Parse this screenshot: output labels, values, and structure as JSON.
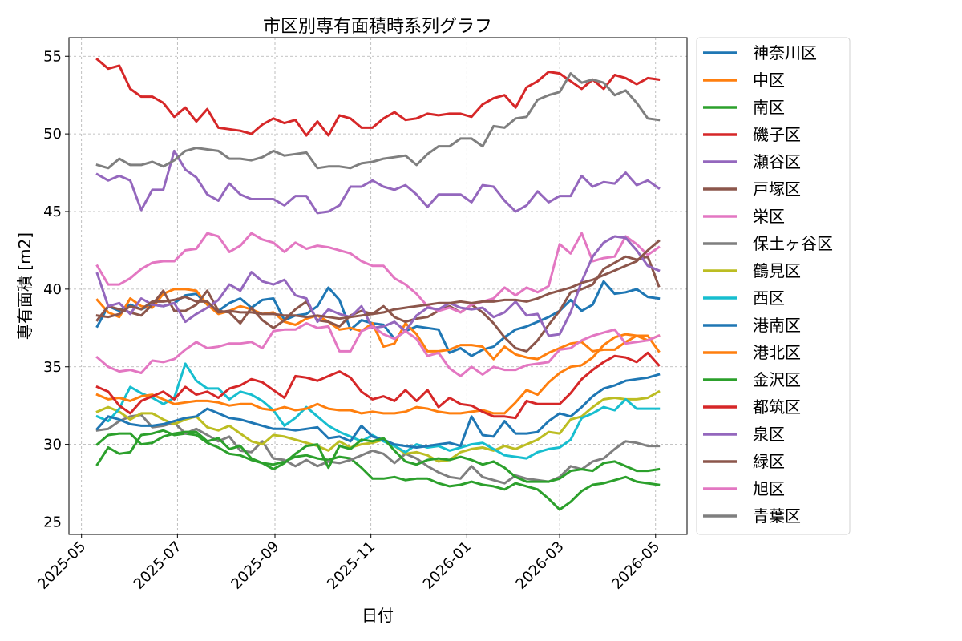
{
  "chart_data": {
    "type": "line",
    "title": "市区別専有面積時系列グラフ",
    "xlabel": "日付",
    "ylabel": "専有面積 [m2]",
    "ylim": [
      24.2,
      56.2
    ],
    "yticks": [
      25,
      30,
      35,
      40,
      45,
      50,
      55
    ],
    "xlim": [
      "2025-04-23",
      "2026-05-21"
    ],
    "xticks": [
      "2025-05",
      "2025-07",
      "2025-09",
      "2025-11",
      "2026-01",
      "2026-03",
      "2026-05"
    ],
    "grid": true,
    "legend": "outside-right",
    "x": [
      "2025-05-11",
      "2025-05-18",
      "2025-05-25",
      "2025-06-01",
      "2025-06-08",
      "2025-06-15",
      "2025-06-22",
      "2025-06-29",
      "2025-07-06",
      "2025-07-13",
      "2025-07-20",
      "2025-07-27",
      "2025-08-03",
      "2025-08-10",
      "2025-08-17",
      "2025-08-24",
      "2025-08-31",
      "2025-09-07",
      "2025-09-14",
      "2025-09-21",
      "2025-09-28",
      "2025-10-05",
      "2025-10-12",
      "2025-10-19",
      "2025-10-26",
      "2025-11-02",
      "2025-11-09",
      "2025-11-16",
      "2025-11-23",
      "2025-11-30",
      "2025-12-07",
      "2025-12-14",
      "2025-12-21",
      "2025-12-28",
      "2026-01-04",
      "2026-01-11",
      "2026-01-18",
      "2026-01-25",
      "2026-02-01",
      "2026-02-08",
      "2026-02-15",
      "2026-02-22",
      "2026-03-01",
      "2026-03-08",
      "2026-03-15",
      "2026-03-22",
      "2026-03-29",
      "2026-04-05",
      "2026-04-12",
      "2026-04-19",
      "2026-04-26",
      "2026-05-03"
    ],
    "series": [
      {
        "name": "神奈川区",
        "color": "#1f77b4",
        "values": [
          37.6,
          38.9,
          38.6,
          39.0,
          38.7,
          39.0,
          38.9,
          39.1,
          39.6,
          39.7,
          39.0,
          38.6,
          39.1,
          39.4,
          38.8,
          39.3,
          39.4,
          38.0,
          38.3,
          38.4,
          38.9,
          40.1,
          39.3,
          37.4,
          38.0,
          37.8,
          37.7,
          36.8,
          37.3,
          37.6,
          37.5,
          37.4,
          35.9,
          36.2,
          35.7,
          36.1,
          36.3,
          36.9,
          37.4,
          37.6,
          37.9,
          38.2,
          38.6,
          39.3,
          38.6,
          39.0,
          40.5,
          39.7,
          39.8,
          40.0,
          39.5,
          39.4
        ]
      },
      {
        "name": "中区",
        "color": "#ff7f0e",
        "values": [
          39.3,
          38.5,
          38.2,
          39.4,
          38.9,
          38.8,
          39.7,
          40.0,
          40.0,
          39.9,
          39.0,
          38.4,
          38.6,
          38.9,
          38.7,
          38.4,
          38.5,
          37.9,
          37.7,
          38.1,
          38.3,
          37.9,
          37.4,
          37.5,
          37.3,
          37.8,
          36.3,
          36.5,
          37.8,
          37.1,
          36.0,
          36.0,
          36.1,
          36.4,
          36.4,
          36.3,
          35.5,
          36.3,
          35.8,
          35.6,
          35.5,
          35.9,
          36.2,
          36.5,
          36.6,
          36.0,
          36.1,
          36.1,
          36.6,
          37.0,
          36.7,
          37.0
        ]
      },
      {
        "name": "南区",
        "color": "#2ca02c",
        "values": [
          28.7,
          29.8,
          29.4,
          29.5,
          30.6,
          30.7,
          30.9,
          30.6,
          30.7,
          30.6,
          30.1,
          29.8,
          29.4,
          29.3,
          29.0,
          28.8,
          28.7,
          28.9,
          29.2,
          29.3,
          29.1,
          29.0,
          29.2,
          29.1,
          28.5,
          27.8,
          27.8,
          27.9,
          27.7,
          27.8,
          27.8,
          27.5,
          27.3,
          27.4,
          27.6,
          27.4,
          27.3,
          27.1,
          27.5,
          27.3,
          27.1,
          26.5,
          25.8,
          26.3,
          27.0,
          27.4,
          27.5,
          27.7,
          27.9,
          27.6,
          27.5,
          27.4
        ]
      },
      {
        "name": "磯子区",
        "color": "#d62728",
        "values": [
          54.8,
          54.2,
          54.4,
          52.9,
          52.4,
          52.4,
          52.0,
          51.1,
          51.7,
          50.8,
          51.6,
          50.4,
          50.3,
          50.2,
          50.0,
          50.6,
          51.0,
          50.7,
          50.9,
          49.9,
          50.8,
          49.9,
          51.2,
          51.0,
          50.4,
          50.4,
          51.0,
          51.4,
          50.9,
          51.0,
          51.3,
          51.2,
          51.3,
          51.3,
          51.1,
          51.9,
          52.3,
          52.5,
          51.7,
          53.0,
          53.4,
          54.0,
          53.9,
          53.4,
          52.9,
          53.5,
          52.9,
          53.8,
          53.6,
          53.2,
          53.6,
          53.5
        ]
      },
      {
        "name": "瀬谷区",
        "color": "#9467bd",
        "values": [
          47.4,
          47.0,
          47.3,
          47.0,
          45.1,
          46.4,
          46.4,
          48.9,
          47.7,
          47.2,
          46.1,
          45.7,
          46.8,
          46.1,
          45.8,
          45.8,
          45.8,
          45.4,
          46.0,
          46.0,
          44.9,
          45.0,
          45.4,
          46.6,
          46.6,
          47.0,
          46.6,
          46.4,
          46.7,
          46.1,
          45.3,
          46.1,
          46.1,
          46.1,
          45.6,
          46.7,
          46.6,
          45.7,
          45.0,
          45.4,
          46.3,
          45.6,
          46.0,
          46.0,
          47.3,
          46.6,
          46.9,
          46.8,
          47.5,
          46.7,
          47.0,
          46.5
        ]
      },
      {
        "name": "戸塚区",
        "color": "#8c564b",
        "values": [
          38.0,
          38.9,
          38.7,
          38.5,
          38.3,
          39.0,
          39.9,
          38.6,
          38.6,
          39.0,
          39.9,
          38.6,
          38.5,
          37.8,
          38.8,
          38.0,
          37.5,
          38.0,
          38.7,
          39.2,
          38.0,
          37.9,
          37.6,
          38.3,
          38.6,
          38.4,
          38.9,
          38.2,
          37.9,
          38.1,
          38.2,
          38.6,
          38.9,
          38.5,
          39.0,
          38.5,
          37.8,
          36.9,
          36.2,
          36.0,
          36.7,
          37.7,
          38.6,
          39.8,
          40.0,
          40.3,
          41.3,
          41.7,
          42.1,
          41.9,
          42.1,
          40.2
        ]
      },
      {
        "name": "栄区",
        "color": "#e377c2",
        "values": [
          41.5,
          40.3,
          40.3,
          40.7,
          41.3,
          41.7,
          41.8,
          41.8,
          42.5,
          42.6,
          43.6,
          43.4,
          42.4,
          42.8,
          43.6,
          43.2,
          43.0,
          42.4,
          43.0,
          42.6,
          42.8,
          42.7,
          42.5,
          42.3,
          41.8,
          41.5,
          41.5,
          40.7,
          40.3,
          39.7,
          38.9,
          38.6,
          38.8,
          38.5,
          39.0,
          39.2,
          39.4,
          40.1,
          39.6,
          40.1,
          39.8,
          40.2,
          42.9,
          42.3,
          43.6,
          41.8,
          42.0,
          42.1,
          43.4,
          42.9,
          42.2,
          42.7
        ]
      },
      {
        "name": "保土ヶ谷区",
        "color": "#7f7f7f",
        "values": [
          30.9,
          31.0,
          31.5,
          31.8,
          31.9,
          31.1,
          31.2,
          31.4,
          30.7,
          31.0,
          30.6,
          30.2,
          30.5,
          29.6,
          29.5,
          30.2,
          29.1,
          29.0,
          28.6,
          29.0,
          28.6,
          28.9,
          28.8,
          29.0,
          29.3,
          29.6,
          29.4,
          28.8,
          29.4,
          29.1,
          28.6,
          28.2,
          27.9,
          27.8,
          28.6,
          27.9,
          27.7,
          27.5,
          28.0,
          27.8,
          27.7,
          27.6,
          27.9,
          28.6,
          28.4,
          28.9,
          29.1,
          29.7,
          30.2,
          30.1,
          29.9,
          29.9
        ]
      },
      {
        "name": "鶴見区",
        "color": "#bcbd22",
        "values": [
          32.1,
          32.4,
          32.1,
          31.6,
          32.0,
          32.0,
          31.6,
          31.3,
          31.6,
          31.8,
          31.1,
          30.9,
          31.2,
          30.7,
          30.2,
          30.0,
          30.6,
          30.5,
          30.3,
          30.1,
          29.9,
          29.6,
          30.2,
          29.8,
          30.0,
          30.1,
          30.3,
          29.9,
          29.4,
          29.5,
          29.3,
          28.9,
          29.0,
          29.5,
          29.7,
          29.8,
          29.6,
          29.9,
          29.7,
          30.0,
          30.3,
          30.8,
          30.7,
          31.6,
          31.8,
          32.4,
          32.9,
          33.0,
          32.9,
          32.9,
          33.0,
          33.4
        ]
      },
      {
        "name": "西区",
        "color": "#17becf",
        "values": [
          31.8,
          31.5,
          32.3,
          33.7,
          33.3,
          33.0,
          32.6,
          33.0,
          35.2,
          34.1,
          33.6,
          33.6,
          32.9,
          33.4,
          33.2,
          32.8,
          32.2,
          31.2,
          31.7,
          32.4,
          31.8,
          31.2,
          30.8,
          30.5,
          30.2,
          30.6,
          30.2,
          29.9,
          29.5,
          30.0,
          29.8,
          29.9,
          29.6,
          29.8,
          30.0,
          30.1,
          29.7,
          29.3,
          29.2,
          29.1,
          29.5,
          29.7,
          29.8,
          30.3,
          31.7,
          32.0,
          32.4,
          32.2,
          32.9,
          32.3,
          32.3,
          32.3
        ]
      },
      {
        "name": "港南区",
        "color": "#1f77b4",
        "values": [
          31.0,
          31.8,
          31.6,
          31.3,
          31.2,
          31.2,
          31.3,
          31.5,
          31.7,
          31.8,
          32.3,
          32.0,
          31.7,
          31.6,
          31.4,
          31.2,
          31.0,
          31.0,
          30.9,
          31.0,
          31.1,
          30.4,
          30.5,
          30.2,
          31.2,
          30.5,
          30.3,
          30.0,
          29.9,
          29.8,
          29.9,
          30.0,
          30.1,
          29.9,
          31.8,
          30.6,
          30.5,
          31.5,
          30.7,
          30.7,
          30.8,
          31.5,
          32.0,
          31.8,
          32.4,
          33.1,
          33.6,
          33.8,
          34.1,
          34.2,
          34.3,
          34.5
        ]
      },
      {
        "name": "港北区",
        "color": "#ff7f0e",
        "values": [
          33.2,
          32.9,
          33.0,
          32.8,
          33.1,
          33.2,
          32.9,
          32.6,
          32.7,
          32.8,
          32.8,
          32.7,
          32.5,
          32.6,
          32.6,
          32.3,
          32.2,
          32.4,
          32.2,
          32.3,
          32.6,
          32.3,
          32.2,
          32.2,
          32.0,
          32.1,
          32.0,
          32.0,
          32.1,
          32.4,
          32.3,
          32.1,
          32.0,
          32.0,
          32.1,
          32.2,
          32.0,
          32.0,
          32.7,
          33.5,
          33.2,
          34.0,
          34.6,
          35.0,
          35.1,
          35.6,
          36.4,
          36.9,
          37.1,
          37.0,
          37.0,
          36.0
        ]
      },
      {
        "name": "金沢区",
        "color": "#2ca02c",
        "values": [
          30.0,
          30.6,
          30.7,
          30.7,
          30.0,
          30.1,
          30.5,
          30.7,
          30.8,
          30.8,
          30.2,
          30.4,
          29.7,
          29.9,
          29.1,
          28.8,
          28.4,
          28.8,
          29.4,
          29.9,
          30.0,
          28.5,
          29.9,
          29.7,
          30.3,
          30.2,
          30.4,
          29.6,
          28.9,
          28.7,
          29.0,
          29.1,
          29.0,
          29.2,
          29.0,
          28.7,
          28.9,
          28.5,
          27.9,
          27.6,
          27.6,
          27.6,
          27.8,
          28.3,
          28.4,
          28.3,
          28.8,
          28.9,
          28.6,
          28.3,
          28.3,
          28.4
        ]
      },
      {
        "name": "都筑区",
        "color": "#d62728",
        "values": [
          33.7,
          33.4,
          32.5,
          32.0,
          32.8,
          33.1,
          33.4,
          32.9,
          33.7,
          33.2,
          33.4,
          33.0,
          33.6,
          33.8,
          34.2,
          34.0,
          33.5,
          33.0,
          34.4,
          34.3,
          34.1,
          34.4,
          34.7,
          34.3,
          33.4,
          32.9,
          33.1,
          32.8,
          33.5,
          32.8,
          33.5,
          32.4,
          33.0,
          32.6,
          32.5,
          32.1,
          31.8,
          31.8,
          31.7,
          32.8,
          32.6,
          32.6,
          32.6,
          33.3,
          34.2,
          34.8,
          35.3,
          35.7,
          35.6,
          35.3,
          35.9,
          35.1
        ]
      },
      {
        "name": "泉区",
        "color": "#9467bd",
        "values": [
          41.0,
          38.9,
          39.1,
          38.4,
          39.4,
          39.0,
          38.9,
          39.1,
          37.9,
          38.4,
          38.8,
          39.3,
          40.3,
          39.9,
          41.1,
          40.5,
          40.3,
          40.6,
          39.6,
          39.4,
          37.9,
          38.7,
          38.4,
          38.2,
          38.9,
          37.5,
          37.6,
          37.9,
          37.3,
          38.3,
          38.8,
          38.7,
          39.1,
          38.8,
          38.7,
          38.8,
          38.2,
          38.5,
          39.2,
          38.3,
          38.4,
          37.0,
          37.1,
          38.5,
          40.5,
          42.1,
          43.0,
          43.4,
          43.3,
          42.5,
          41.5,
          41.2
        ]
      },
      {
        "name": "緑区",
        "color": "#8c564b",
        "values": [
          38.3,
          38.2,
          38.4,
          38.9,
          38.7,
          39.2,
          39.2,
          39.3,
          39.5,
          39.2,
          39.2,
          38.5,
          38.6,
          38.5,
          38.5,
          38.4,
          38.4,
          38.3,
          38.3,
          38.2,
          38.3,
          38.2,
          38.1,
          38.2,
          38.3,
          38.4,
          38.5,
          38.7,
          38.8,
          38.9,
          39.0,
          39.1,
          39.1,
          39.2,
          39.1,
          39.2,
          39.2,
          39.3,
          39.3,
          39.2,
          39.4,
          39.7,
          39.9,
          40.1,
          40.4,
          40.6,
          40.9,
          41.2,
          41.5,
          41.8,
          42.5,
          43.1
        ]
      },
      {
        "name": "旭区",
        "color": "#e377c2",
        "values": [
          35.6,
          35.0,
          34.7,
          34.8,
          34.6,
          35.4,
          35.3,
          35.5,
          36.1,
          36.6,
          36.2,
          36.3,
          36.5,
          36.5,
          36.6,
          36.2,
          37.3,
          37.4,
          37.4,
          37.8,
          37.5,
          37.6,
          36.0,
          36.0,
          37.3,
          37.6,
          37.1,
          36.8,
          37.3,
          36.8,
          35.7,
          35.9,
          34.9,
          34.4,
          35.0,
          34.5,
          35.0,
          34.8,
          34.8,
          35.1,
          35.2,
          35.3,
          36.1,
          36.2,
          36.7,
          37.0,
          37.2,
          37.4,
          36.5,
          36.6,
          36.7,
          37.0
        ]
      },
      {
        "name": "青葉区",
        "color": "#7f7f7f",
        "values": [
          48.0,
          47.8,
          48.4,
          48.0,
          48.0,
          48.2,
          47.9,
          48.3,
          48.9,
          49.1,
          49.0,
          48.9,
          48.4,
          48.4,
          48.3,
          48.5,
          48.9,
          48.6,
          48.7,
          48.8,
          47.8,
          47.9,
          47.9,
          47.8,
          48.1,
          48.2,
          48.4,
          48.5,
          48.6,
          48.0,
          48.7,
          49.2,
          49.2,
          49.7,
          49.7,
          49.2,
          50.5,
          50.4,
          51.0,
          51.1,
          52.2,
          52.5,
          52.7,
          53.9,
          53.3,
          53.5,
          53.3,
          52.5,
          52.8,
          52.0,
          51.0,
          50.9
        ]
      }
    ]
  }
}
